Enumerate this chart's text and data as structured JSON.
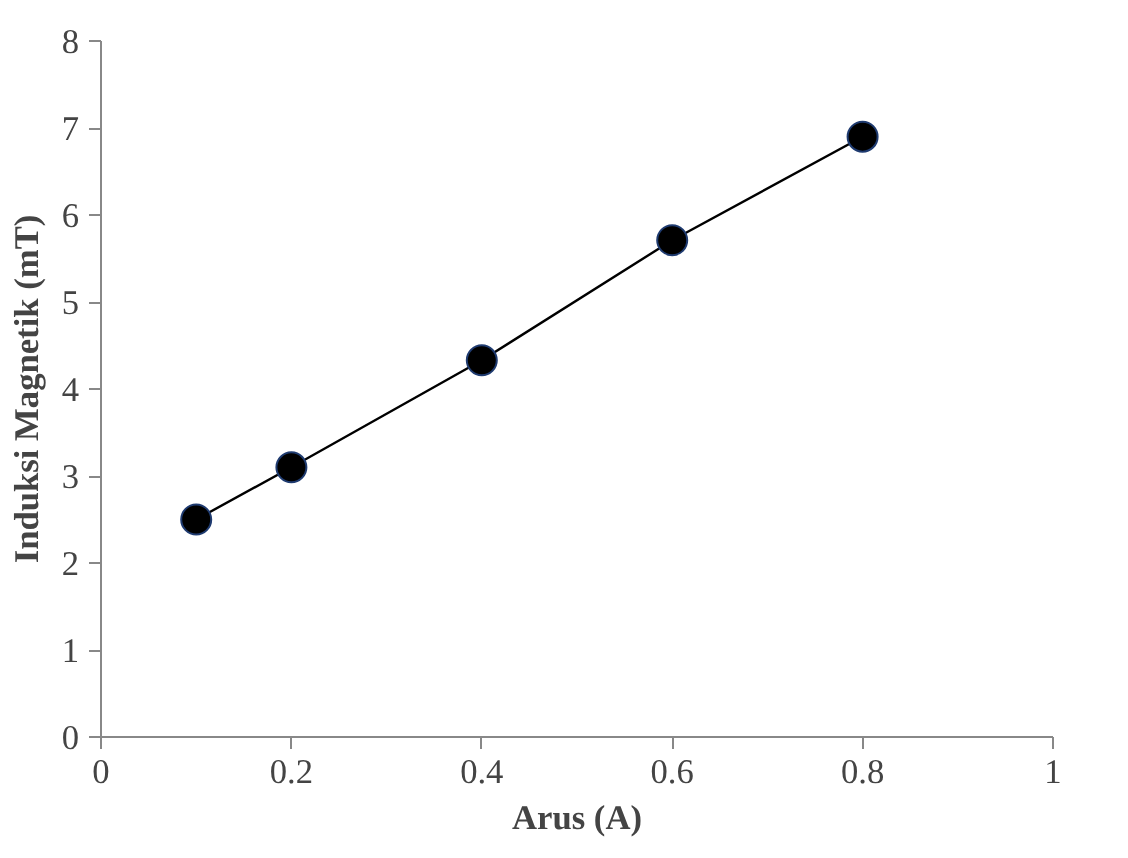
{
  "chart_data": {
    "type": "line",
    "xlabel": "Arus (A)",
    "ylabel": "Induksi Magnetik (mT)",
    "x": [
      0.1,
      0.2,
      0.4,
      0.6,
      0.8
    ],
    "series": [
      {
        "color": "#000000",
        "values": [
          2.5,
          3.1,
          4.33,
          5.71,
          6.9
        ]
      }
    ],
    "xlim": [
      0,
      1
    ],
    "xticks": [
      0,
      0.2,
      0.4,
      0.6,
      0.8,
      1
    ],
    "ylim": [
      0,
      8
    ],
    "yticks": [
      0,
      1,
      2,
      3,
      4,
      5,
      6,
      7,
      8
    ],
    "marker": "circle",
    "line_style": "solid",
    "grid": false
  }
}
